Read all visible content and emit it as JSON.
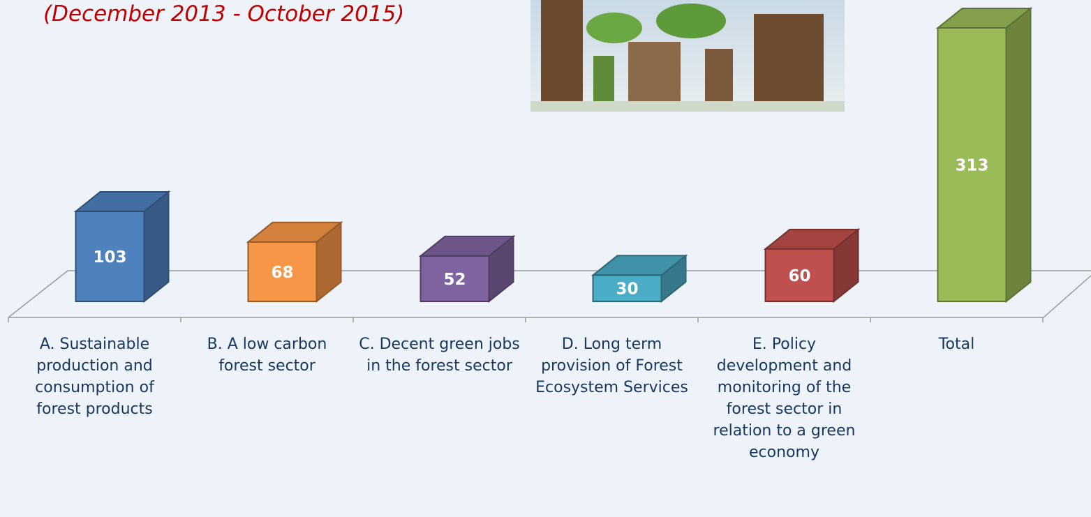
{
  "chart_data": {
    "type": "bar3d",
    "subtitle": "(December 2013 - October 2015)",
    "categories": [
      "A. Sustainable production and consumption of forest products",
      "B. A low carbon forest sector",
      "C. Decent green jobs in the forest sector",
      "D. Long term provision of Forest Ecosystem Services",
      "E. Policy development and monitoring of the forest sector in relation to a green economy",
      "Total"
    ],
    "values": [
      103,
      68,
      52,
      30,
      60,
      313
    ],
    "colors": [
      "#4f81bd",
      "#f79646",
      "#8064a2",
      "#4bacc6",
      "#c0504d",
      "#9bbb59"
    ]
  }
}
